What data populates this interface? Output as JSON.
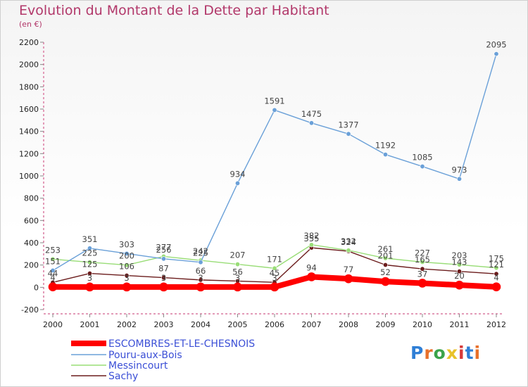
{
  "title": "Evolution du Montant de la Dette par Habitant",
  "unit_label": "(en €)",
  "logo": {
    "text": "Proxiti",
    "colors": [
      "#2f7fd6",
      "#e8702a",
      "#3aa34a",
      "#e8c22a",
      "#d63a3a",
      "#2f7fd6",
      "#e8702a"
    ]
  },
  "chart_data": {
    "type": "line",
    "title": "Evolution du Montant de la Dette par Habitant",
    "ylabel": "(en €)",
    "xlabel": "",
    "x": [
      "2000",
      "2001",
      "2002",
      "2003",
      "2004",
      "2005",
      "2006",
      "2007",
      "2008",
      "2009",
      "2010",
      "2011",
      "2012"
    ],
    "ylim": [
      -200,
      2200
    ],
    "yticks": [
      -200,
      0,
      200,
      400,
      600,
      800,
      1000,
      1200,
      1400,
      1600,
      1800,
      2000,
      2200
    ],
    "grid": false,
    "legend_position": "bottom-left",
    "series": [
      {
        "name": "ESCOMBRES-ET-LE-CHESNOIS",
        "color": "#ff0000",
        "values": [
          4,
          3,
          3,
          3,
          3,
          3,
          3,
          94,
          77,
          52,
          37,
          20,
          4
        ]
      },
      {
        "name": "Pouru-aux-Bois",
        "color": "#6aa0d8",
        "values": [
          151,
          351,
          303,
          256,
          225,
          934,
          1591,
          1475,
          1377,
          1192,
          1085,
          973,
          2095
        ]
      },
      {
        "name": "Messincourt",
        "color": "#99dd77",
        "values": [
          253,
          225,
          200,
          277,
          242,
          207,
          171,
          382,
          332,
          261,
          227,
          203,
          175
        ]
      },
      {
        "name": "Sachy",
        "color": "#6b1c1c",
        "values": [
          44,
          125,
          106,
          87,
          66,
          56,
          45,
          355,
          324,
          201,
          165,
          143,
          121
        ]
      }
    ],
    "data_labels": [
      [
        "4",
        "3",
        "3",
        "3",
        "3",
        "3",
        "3",
        "94",
        "77",
        "52",
        "37",
        "20",
        "4"
      ],
      [
        "151",
        "351",
        "303",
        "256",
        "225",
        "934",
        "1591",
        "1475",
        "1377",
        "1192",
        "1085",
        "973",
        "2095"
      ],
      [
        "253",
        "225",
        "200",
        "277",
        "242",
        "207",
        "171",
        "382",
        "332",
        "261",
        "227",
        "203",
        "175"
      ],
      [
        "44",
        "125",
        "106",
        "87",
        "66",
        "56",
        "45",
        "355",
        "324",
        "201",
        "165",
        "143",
        "121"
      ]
    ]
  }
}
